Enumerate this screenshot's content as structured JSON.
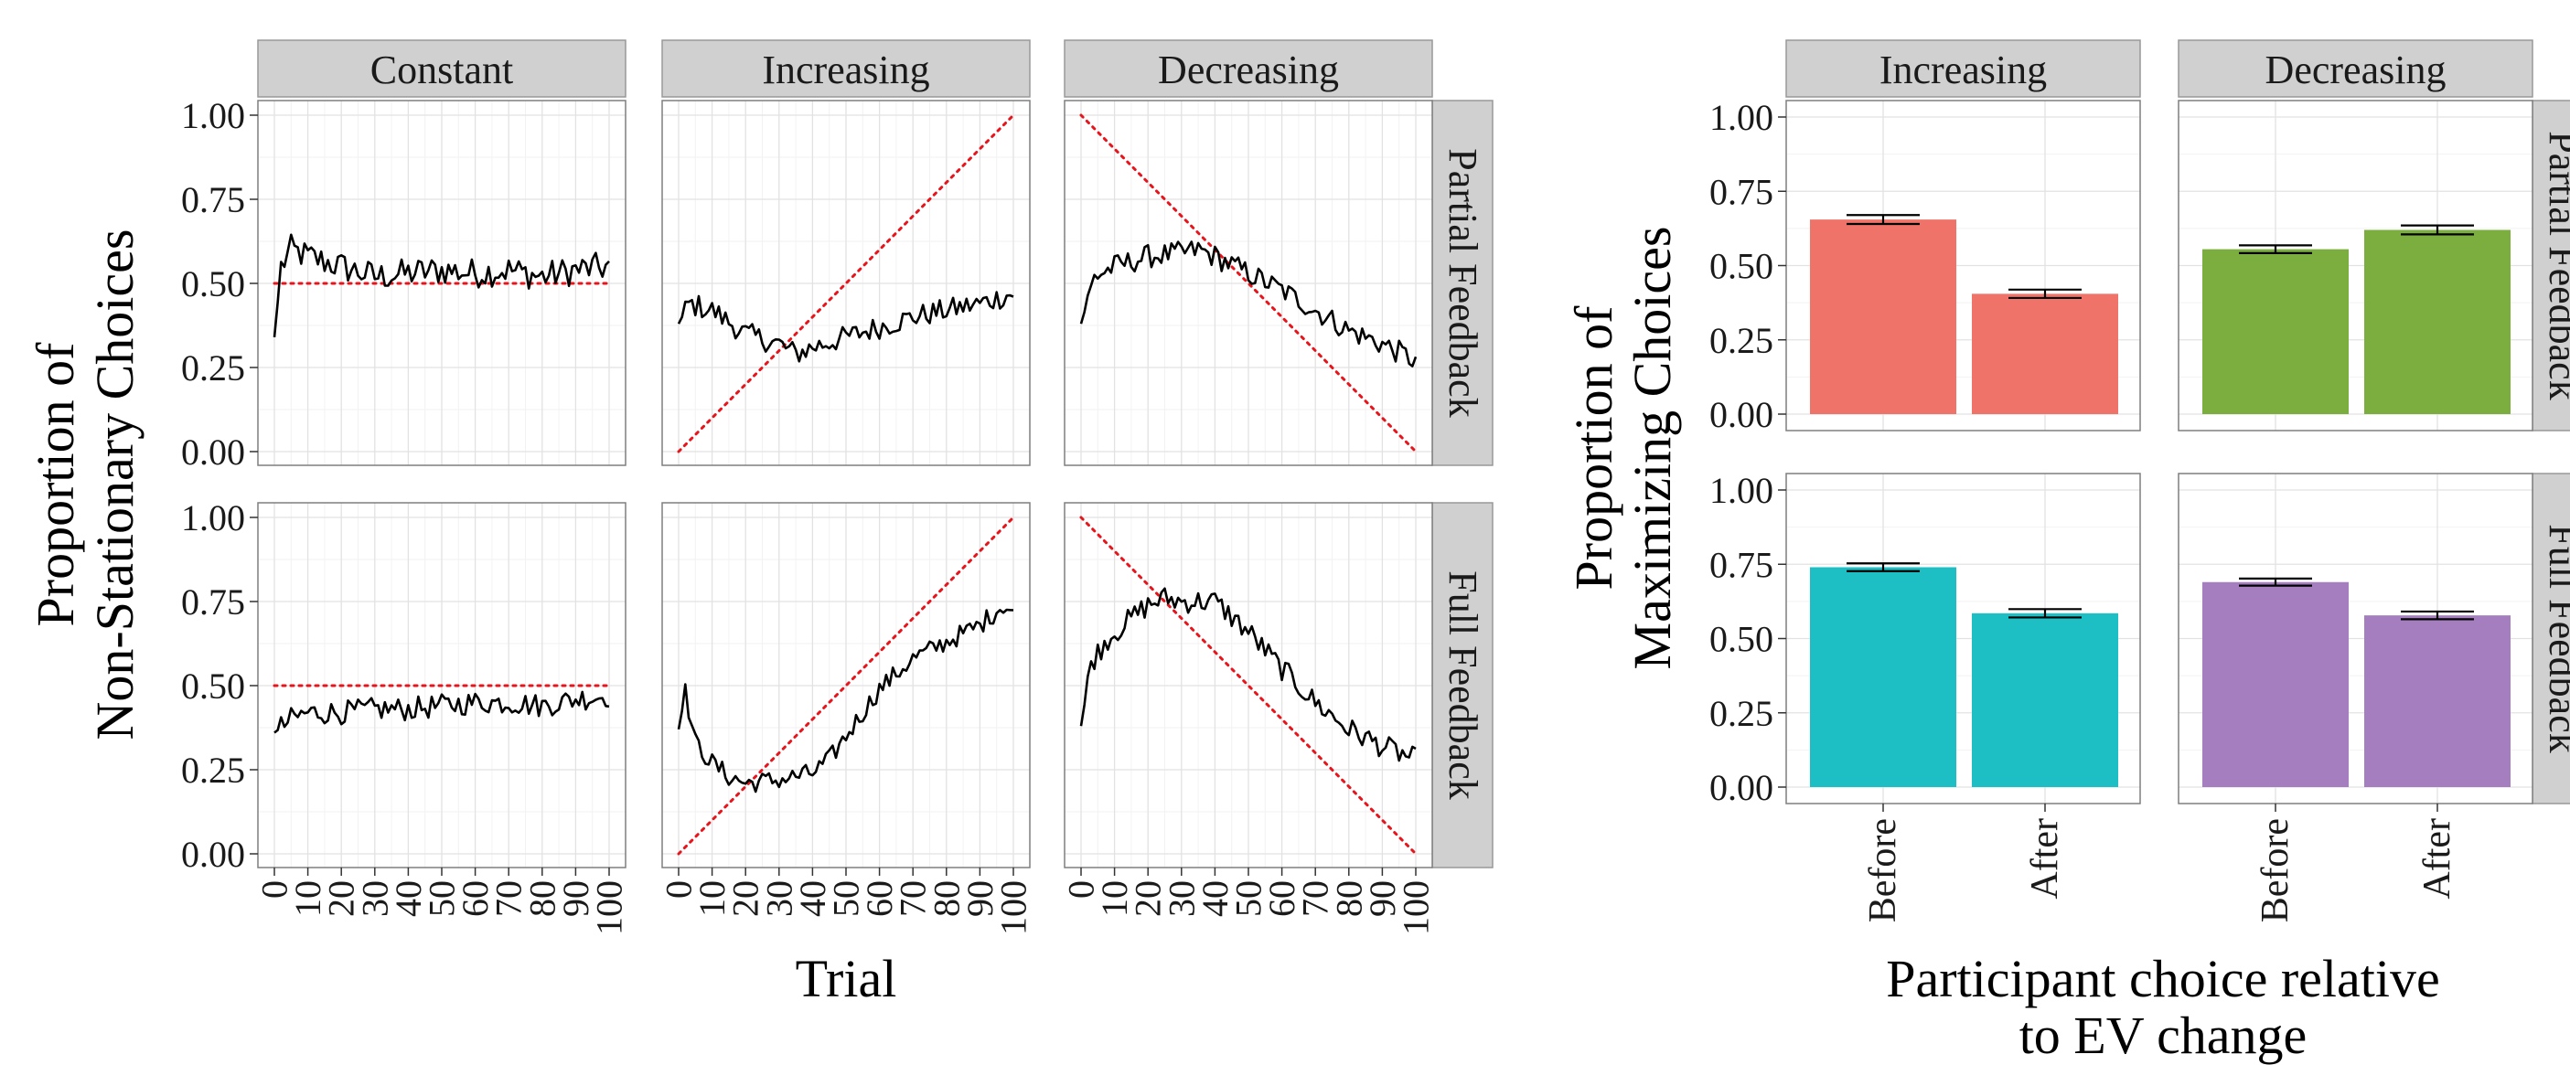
{
  "chart_data": [
    {
      "type": "line",
      "facet_columns": [
        "Constant",
        "Increasing",
        "Decreasing"
      ],
      "facet_rows": [
        "Partial Feedback",
        "Full Feedback"
      ],
      "xlabel": "Trial",
      "ylabel_lines": [
        "Proportion of",
        "Non-Stationary Choices"
      ],
      "xlim": [
        0,
        100
      ],
      "ylim": [
        0,
        1
      ],
      "x_ticks": [
        "0",
        "10",
        "20",
        "30",
        "40",
        "50",
        "60",
        "70",
        "80",
        "90",
        "100"
      ],
      "y_ticks": [
        "0.00",
        "0.25",
        "0.50",
        "0.75",
        "1.00"
      ],
      "grid": true,
      "reference_lines": {
        "Constant": [
          [
            0,
            0.5
          ],
          [
            100,
            0.5
          ]
        ],
        "Increasing": [
          [
            0,
            0.0
          ],
          [
            100,
            1.0
          ]
        ],
        "Decreasing": [
          [
            0,
            1.0
          ],
          [
            100,
            0.0
          ]
        ]
      },
      "series": [
        {
          "row": "Partial Feedback",
          "col": "Constant",
          "anchors": [
            [
              0,
              0.34
            ],
            [
              2,
              0.55
            ],
            [
              5,
              0.6
            ],
            [
              10,
              0.58
            ],
            [
              20,
              0.55
            ],
            [
              30,
              0.52
            ],
            [
              40,
              0.53
            ],
            [
              50,
              0.54
            ],
            [
              60,
              0.53
            ],
            [
              70,
              0.54
            ],
            [
              80,
              0.52
            ],
            [
              90,
              0.54
            ],
            [
              100,
              0.55
            ]
          ],
          "noise": 0.045
        },
        {
          "row": "Partial Feedback",
          "col": "Increasing",
          "anchors": [
            [
              0,
              0.38
            ],
            [
              3,
              0.44
            ],
            [
              10,
              0.42
            ],
            [
              20,
              0.35
            ],
            [
              30,
              0.32
            ],
            [
              35,
              0.29
            ],
            [
              40,
              0.31
            ],
            [
              50,
              0.34
            ],
            [
              60,
              0.37
            ],
            [
              70,
              0.4
            ],
            [
              80,
              0.42
            ],
            [
              90,
              0.44
            ],
            [
              100,
              0.47
            ]
          ],
          "noise": 0.035
        },
        {
          "row": "Partial Feedback",
          "col": "Decreasing",
          "anchors": [
            [
              0,
              0.38
            ],
            [
              4,
              0.52
            ],
            [
              10,
              0.55
            ],
            [
              20,
              0.58
            ],
            [
              30,
              0.59
            ],
            [
              35,
              0.6
            ],
            [
              40,
              0.58
            ],
            [
              50,
              0.53
            ],
            [
              60,
              0.48
            ],
            [
              70,
              0.42
            ],
            [
              80,
              0.36
            ],
            [
              90,
              0.32
            ],
            [
              100,
              0.27
            ]
          ],
          "noise": 0.035
        },
        {
          "row": "Full Feedback",
          "col": "Constant",
          "anchors": [
            [
              0,
              0.36
            ],
            [
              5,
              0.4
            ],
            [
              10,
              0.42
            ],
            [
              20,
              0.42
            ],
            [
              30,
              0.43
            ],
            [
              40,
              0.43
            ],
            [
              50,
              0.44
            ],
            [
              60,
              0.45
            ],
            [
              70,
              0.45
            ],
            [
              80,
              0.44
            ],
            [
              90,
              0.46
            ],
            [
              100,
              0.47
            ]
          ],
          "noise": 0.035
        },
        {
          "row": "Full Feedback",
          "col": "Increasing",
          "anchors": [
            [
              0,
              0.37
            ],
            [
              2,
              0.48
            ],
            [
              5,
              0.33
            ],
            [
              10,
              0.27
            ],
            [
              15,
              0.23
            ],
            [
              20,
              0.21
            ],
            [
              30,
              0.22
            ],
            [
              40,
              0.24
            ],
            [
              45,
              0.28
            ],
            [
              50,
              0.35
            ],
            [
              60,
              0.49
            ],
            [
              70,
              0.58
            ],
            [
              80,
              0.63
            ],
            [
              90,
              0.68
            ],
            [
              97,
              0.74
            ],
            [
              100,
              0.72
            ]
          ],
          "noise": 0.03
        },
        {
          "row": "Full Feedback",
          "col": "Decreasing",
          "anchors": [
            [
              0,
              0.38
            ],
            [
              3,
              0.57
            ],
            [
              8,
              0.64
            ],
            [
              15,
              0.7
            ],
            [
              20,
              0.74
            ],
            [
              25,
              0.76
            ],
            [
              30,
              0.75
            ],
            [
              40,
              0.75
            ],
            [
              50,
              0.66
            ],
            [
              60,
              0.55
            ],
            [
              70,
              0.45
            ],
            [
              80,
              0.37
            ],
            [
              90,
              0.32
            ],
            [
              100,
              0.28
            ]
          ],
          "noise": 0.035
        }
      ]
    },
    {
      "type": "bar",
      "facet_columns": [
        "Increasing",
        "Decreasing"
      ],
      "facet_rows": [
        "Partial Feedback",
        "Full Feedback"
      ],
      "categories": [
        "Before",
        "After"
      ],
      "xlabel_lines": [
        "Participant choice relative",
        "to EV change"
      ],
      "ylabel_lines": [
        "Proportion of",
        "Maximizing Choices"
      ],
      "ylim": [
        0,
        1
      ],
      "y_ticks": [
        "0.00",
        "0.25",
        "0.50",
        "0.75",
        "1.00"
      ],
      "grid": true,
      "error_bars": true,
      "series": [
        {
          "row": "Partial Feedback",
          "col": "Increasing",
          "values": [
            0.655,
            0.405
          ],
          "errors": [
            0.015,
            0.014
          ],
          "color": "#F0736A"
        },
        {
          "row": "Partial Feedback",
          "col": "Decreasing",
          "values": [
            0.555,
            0.62
          ],
          "errors": [
            0.013,
            0.015
          ],
          "color": "#7BAE3E"
        },
        {
          "row": "Full Feedback",
          "col": "Increasing",
          "values": [
            0.74,
            0.585
          ],
          "errors": [
            0.013,
            0.014
          ],
          "color": "#1DBFC4"
        },
        {
          "row": "Full Feedback",
          "col": "Decreasing",
          "values": [
            0.69,
            0.578
          ],
          "errors": [
            0.012,
            0.013
          ],
          "color": "#A47EBE"
        }
      ]
    }
  ]
}
